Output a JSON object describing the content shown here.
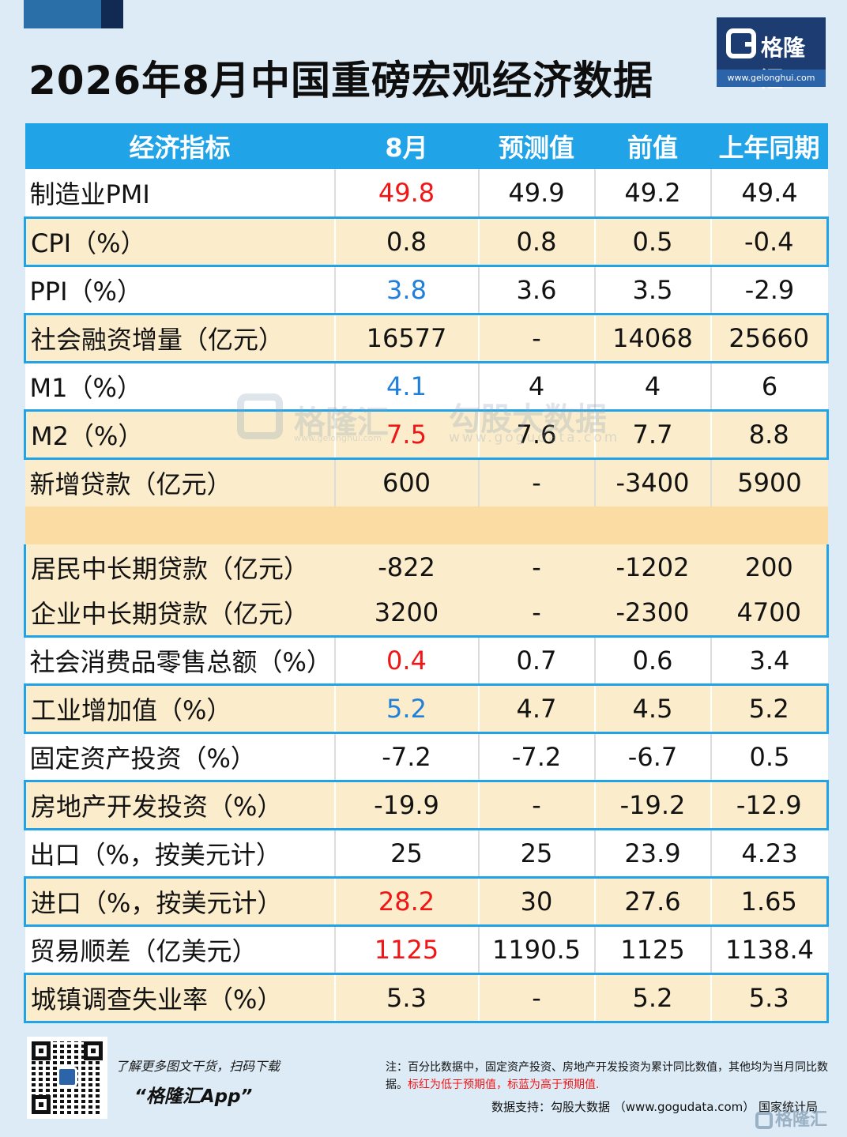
{
  "title": "2026年8月中国重磅宏观经济数据",
  "logo": {
    "name": "格隆汇",
    "url": "www.gelonghui.com"
  },
  "chart_data": {
    "type": "table",
    "columns": [
      "经济指标",
      "8月",
      "预测值",
      "前值",
      "上年同期"
    ],
    "rows": [
      {
        "label": "制造业PMI",
        "values": [
          "49.8",
          "49.9",
          "49.2",
          "49.4"
        ],
        "mark": "red"
      },
      {
        "label": "CPI（%）",
        "values": [
          "0.8",
          "0.8",
          "0.5",
          "-0.4"
        ],
        "mark": ""
      },
      {
        "label": "PPI（%）",
        "values": [
          "3.8",
          "3.6",
          "3.5",
          "-2.9"
        ],
        "mark": "blue"
      },
      {
        "label": "社会融资增量（亿元）",
        "values": [
          "16577",
          "-",
          "14068",
          "25660"
        ],
        "mark": ""
      },
      {
        "label": "M1（%）",
        "values": [
          "4.1",
          "4",
          "4",
          "6"
        ],
        "mark": "blue"
      },
      {
        "label": "M2（%）",
        "values": [
          "7.5",
          "7.6",
          "7.7",
          "8.8"
        ],
        "mark": "red"
      },
      {
        "label": "新增贷款（亿元）",
        "values": [
          "600",
          "-",
          "-3400",
          "5900"
        ],
        "mark": ""
      },
      {
        "label": "居民中长期贷款（亿元）",
        "values": [
          "-822",
          "-",
          "-1202",
          "200"
        ],
        "mark": ""
      },
      {
        "label": "企业中长期贷款（亿元）",
        "values": [
          "3200",
          "-",
          "-2300",
          "4700"
        ],
        "mark": ""
      },
      {
        "label": "社会消费品零售总额（%）",
        "values": [
          "0.4",
          "0.7",
          "0.6",
          "3.4"
        ],
        "mark": "red"
      },
      {
        "label": "工业增加值（%）",
        "values": [
          "5.2",
          "4.7",
          "4.5",
          "5.2"
        ],
        "mark": "blue"
      },
      {
        "label": "固定资产投资（%）",
        "values": [
          "-7.2",
          "-7.2",
          "-6.7",
          "0.5"
        ],
        "mark": ""
      },
      {
        "label": "房地产开发投资（%）",
        "values": [
          "-19.9",
          "-",
          "-19.2",
          "-12.9"
        ],
        "mark": ""
      },
      {
        "label": "出口（%，按美元计）",
        "values": [
          "25",
          "25",
          "23.9",
          "4.23"
        ],
        "mark": ""
      },
      {
        "label": "进口（%，按美元计）",
        "values": [
          "28.2",
          "30",
          "27.6",
          "1.65"
        ],
        "mark": "red"
      },
      {
        "label": "贸易顺差（亿美元）",
        "values": [
          "1125",
          "1190.5",
          "1125",
          "1138.4"
        ],
        "mark": "red"
      },
      {
        "label": "城镇调查失业率（%）",
        "values": [
          "5.3",
          "-",
          "5.2",
          "5.3"
        ],
        "mark": ""
      }
    ],
    "highlight_colors": {
      "red": "#f01616",
      "blue": "#1f7fd9"
    }
  },
  "watermark": {
    "text1": "格隆汇",
    "url1": "www.gelonghui.com",
    "text2": "勾股大数据",
    "url2": "www.gogudata.com"
  },
  "footer": {
    "promo_line1": "了解更多图文干货，扫码下载",
    "promo_line2": "“格隆汇App”",
    "note_plain": "注：百分比数据中，固定资产投资、房地产开发投资为累计同比数值，其他均为当月同比数据。",
    "note_highlight": "标红为低于预期值，标蓝为高于预期值.",
    "source": "数据支持：勾股大数据 （www.gogudata.com）  国家统计局",
    "corner_logo": "格隆汇"
  }
}
